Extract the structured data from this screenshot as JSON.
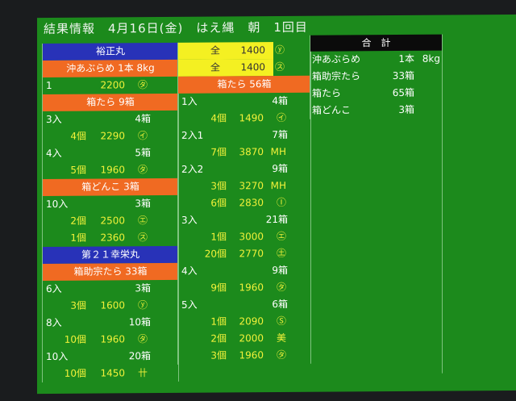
{
  "title": "結果情報　4月16日(金)　はえ縄　朝　1回目",
  "colors": {
    "screen": "#1c8a1c",
    "vessel_header": "#2832b8",
    "species_header": "#f06a22",
    "highlight": "#f4f022",
    "price_text": "#f2f23a"
  },
  "column1": [
    {
      "type": "vessel",
      "label": "裕正丸"
    },
    {
      "type": "species",
      "label": "沖あぶらめ 1本 8kg"
    },
    {
      "type": "item",
      "qty": "1",
      "price": "2200",
      "mark": "㋟"
    },
    {
      "type": "species",
      "label": "箱たら 9箱"
    },
    {
      "type": "grade",
      "label": "3入",
      "boxes": "4箱"
    },
    {
      "type": "item",
      "qty": "4個",
      "price": "2290",
      "mark": "㋑"
    },
    {
      "type": "grade",
      "label": "4入",
      "boxes": "5箱"
    },
    {
      "type": "item",
      "qty": "5個",
      "price": "1960",
      "mark": "㋟"
    },
    {
      "type": "species",
      "label": "箱どんこ 3箱"
    },
    {
      "type": "grade",
      "label": "10入",
      "boxes": "3箱"
    },
    {
      "type": "item",
      "qty": "2個",
      "price": "2500",
      "mark": "㋓"
    },
    {
      "type": "item",
      "qty": "1個",
      "price": "2360",
      "mark": "㋜"
    },
    {
      "type": "vessel",
      "label": "第２１幸栄丸"
    },
    {
      "type": "species",
      "label": "箱助宗たら 33箱"
    },
    {
      "type": "grade",
      "label": "6入",
      "boxes": "3箱"
    },
    {
      "type": "item",
      "qty": "3個",
      "price": "1600",
      "mark": "ⓨ"
    },
    {
      "type": "grade",
      "label": "8入",
      "boxes": "10箱"
    },
    {
      "type": "item",
      "qty": "10個",
      "price": "1960",
      "mark": "㋟"
    },
    {
      "type": "grade",
      "label": "10入",
      "boxes": "20箱"
    },
    {
      "type": "item",
      "qty": "10個",
      "price": "1450",
      "mark": "卄"
    }
  ],
  "column2": [
    {
      "type": "full",
      "qty": "全",
      "price": "1400",
      "mark": "ⓨ"
    },
    {
      "type": "full",
      "qty": "全",
      "price": "1400",
      "mark": "㋜"
    },
    {
      "type": "species",
      "label": "箱たら 56箱"
    },
    {
      "type": "grade",
      "label": "1入",
      "boxes": "4箱"
    },
    {
      "type": "item",
      "qty": "4個",
      "price": "1490",
      "mark": "㋑"
    },
    {
      "type": "grade",
      "label": "2入1",
      "boxes": "7箱"
    },
    {
      "type": "item",
      "qty": "7個",
      "price": "3870",
      "mark": "MH"
    },
    {
      "type": "grade",
      "label": "2入2",
      "boxes": "9箱"
    },
    {
      "type": "item",
      "qty": "3個",
      "price": "3270",
      "mark": "MH"
    },
    {
      "type": "item",
      "qty": "6個",
      "price": "2830",
      "mark": "Ⓘ"
    },
    {
      "type": "grade",
      "label": "3入",
      "boxes": "21箱"
    },
    {
      "type": "item",
      "qty": "1個",
      "price": "3000",
      "mark": "㋓"
    },
    {
      "type": "item",
      "qty": "20個",
      "price": "2770",
      "mark": "㊏"
    },
    {
      "type": "grade",
      "label": "4入",
      "boxes": "9箱"
    },
    {
      "type": "item",
      "qty": "9個",
      "price": "1960",
      "mark": "㋟"
    },
    {
      "type": "grade",
      "label": "5入",
      "boxes": "6箱"
    },
    {
      "type": "item",
      "qty": "1個",
      "price": "2090",
      "mark": "Ⓢ"
    },
    {
      "type": "item",
      "qty": "2個",
      "price": "2000",
      "mark": "美"
    },
    {
      "type": "item",
      "qty": "3個",
      "price": "1960",
      "mark": "㋟"
    }
  ],
  "totals": {
    "header": "合　計",
    "rows": [
      {
        "name": "沖あぶらめ",
        "amount": "1本",
        "weight": "8kg"
      },
      {
        "name": "箱助宗たら",
        "amount": "33箱",
        "weight": ""
      },
      {
        "name": "箱たら",
        "amount": "65箱",
        "weight": ""
      },
      {
        "name": "箱どんこ",
        "amount": "3箱",
        "weight": ""
      }
    ]
  }
}
